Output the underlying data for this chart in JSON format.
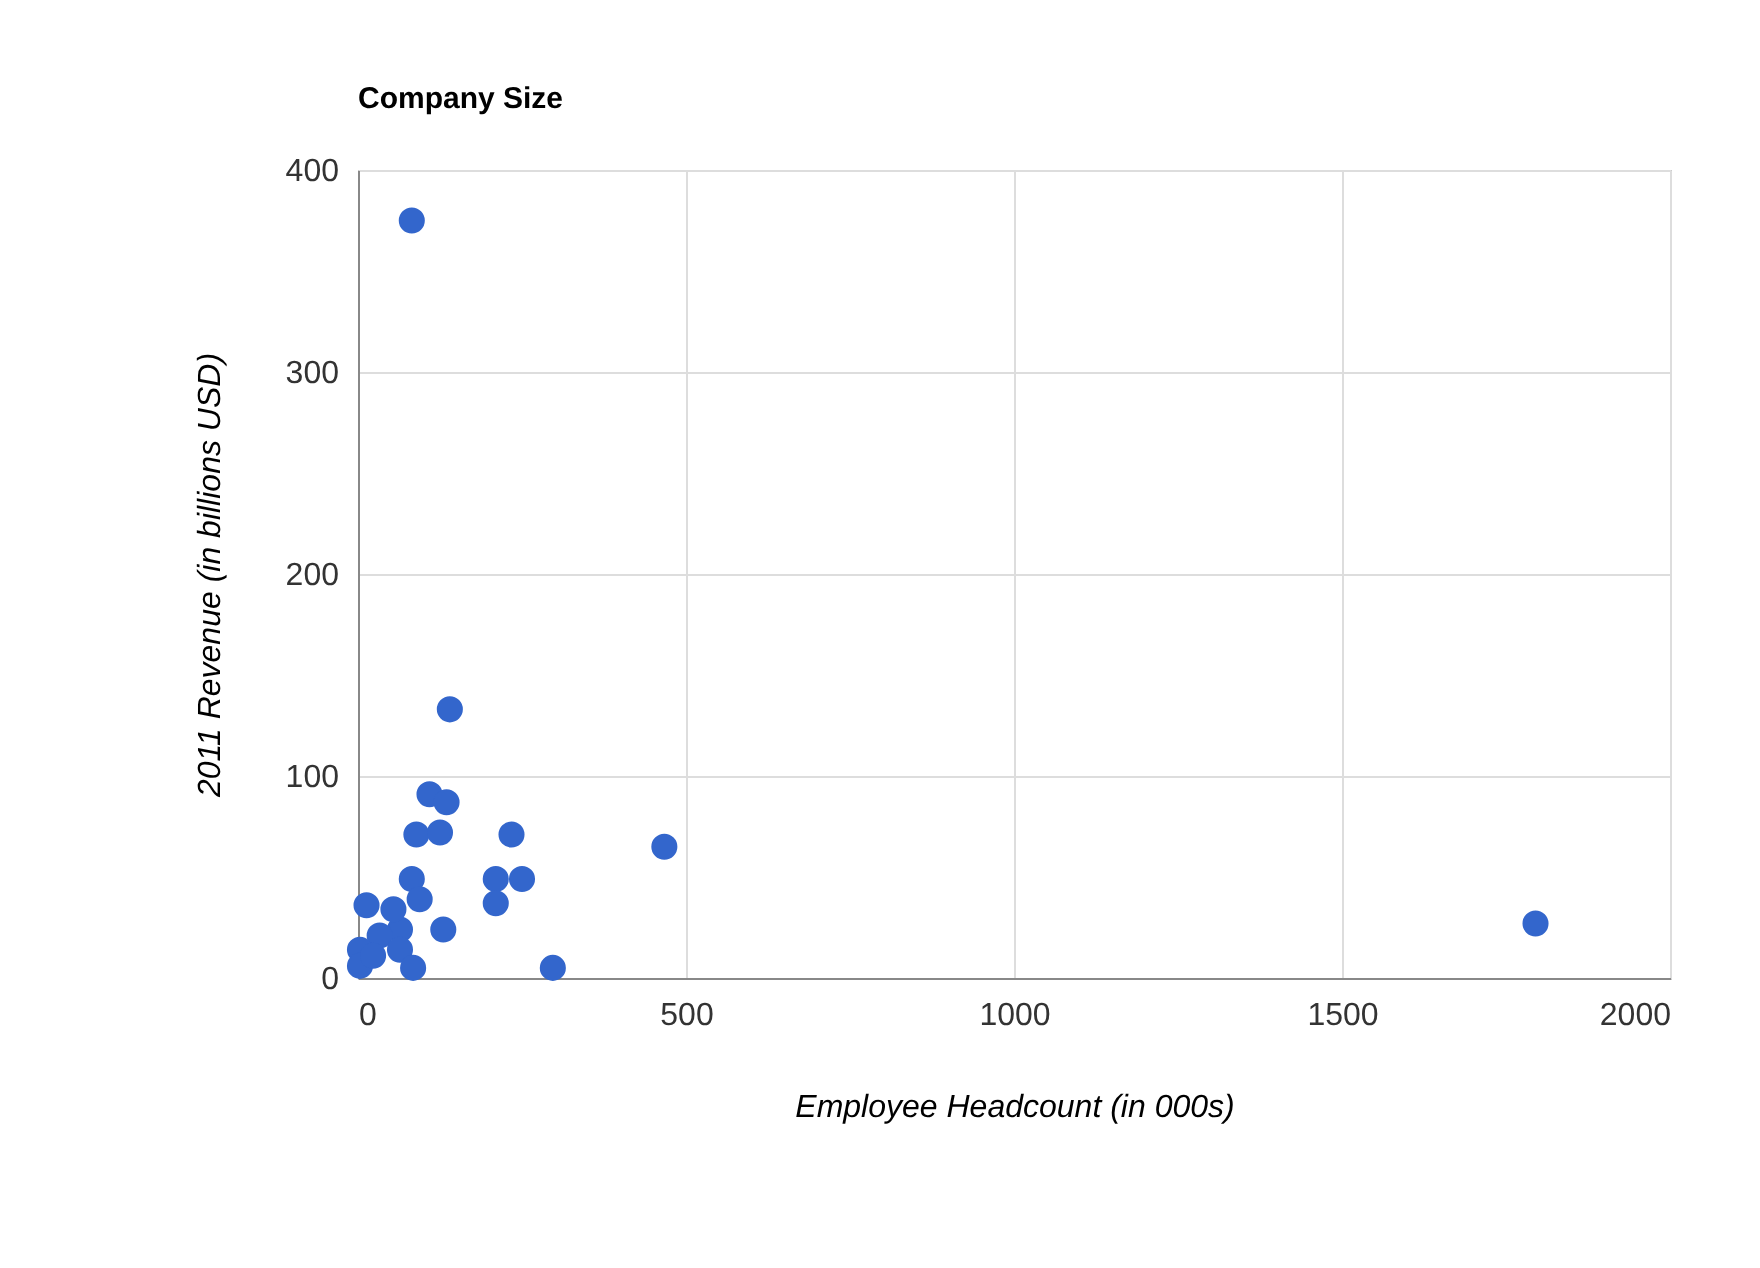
{
  "chart_data": {
    "type": "scatter",
    "title": "Company Size",
    "xlabel": "Employee Headcount (in 000s)",
    "ylabel": "2011 Revenue (in billions USD)",
    "x": [
      82,
      140,
      109,
      135,
      89,
      125,
      234,
      467,
      82,
      210,
      250,
      210,
      13,
      94,
      130,
      297,
      64,
      33,
      3,
      64,
      3,
      84,
      23,
      54,
      1795
    ],
    "series": [
      {
        "color": "#3366cc",
        "values": [
          375,
          133,
          91,
          87,
          71,
          72,
          71,
          65,
          49,
          49,
          49,
          37,
          36,
          39,
          24,
          5,
          24,
          21,
          14,
          14,
          6,
          5,
          11,
          34,
          27
        ]
      }
    ],
    "xlim": [
      0,
      2000
    ],
    "ylim": [
      0,
      400
    ],
    "xticks": [
      0,
      500,
      1000,
      1500,
      2000
    ],
    "yticks": [
      0,
      100,
      200,
      300,
      400
    ],
    "grid": true,
    "legend": false,
    "marker": "circle"
  }
}
